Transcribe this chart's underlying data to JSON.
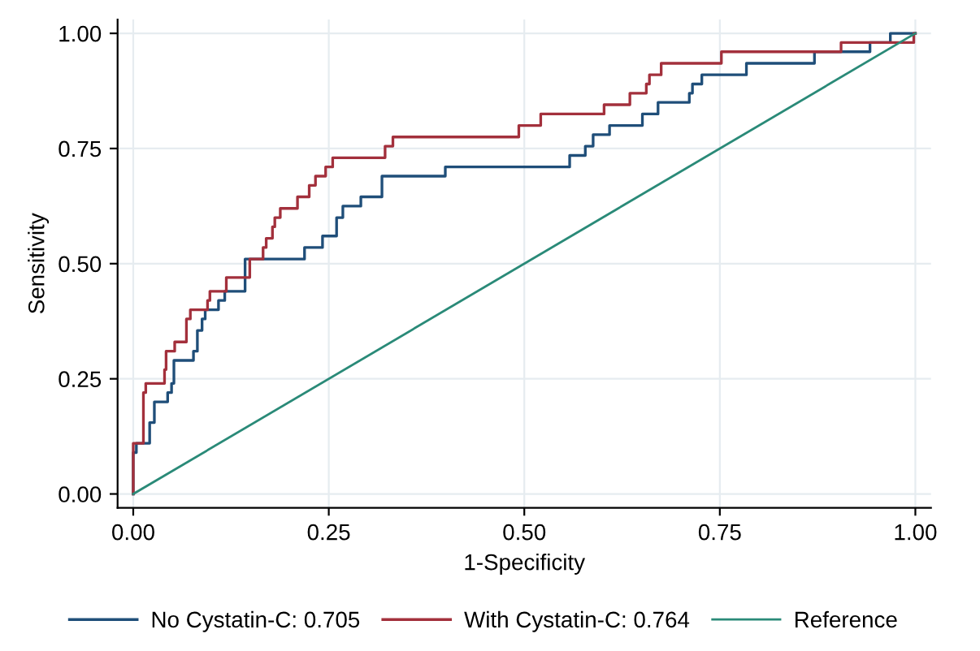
{
  "chart_data": {
    "type": "step",
    "xlabel": "1-Specificity",
    "ylabel": "Sensitivity",
    "xlim": [
      -0.02,
      1.02
    ],
    "ylim": [
      -0.03,
      1.03
    ],
    "xticks": [
      {
        "value": 0,
        "label": "0.00"
      },
      {
        "value": 0.25,
        "label": "0.25"
      },
      {
        "value": 0.5,
        "label": "0.50"
      },
      {
        "value": 0.75,
        "label": "0.75"
      },
      {
        "value": 1,
        "label": "1.00"
      }
    ],
    "yticks": [
      {
        "value": 0,
        "label": "0.00"
      },
      {
        "value": 0.25,
        "label": "0.25"
      },
      {
        "value": 0.5,
        "label": "0.50"
      },
      {
        "value": 0.75,
        "label": "0.75"
      },
      {
        "value": 1,
        "label": "1.00"
      }
    ],
    "grid": true,
    "legend": "bottom",
    "series": [
      {
        "name": "No Cystatin-C: 0.705",
        "color": "#1f4e79",
        "x": [
          0,
          0,
          0.004,
          0.021,
          0.027,
          0.044,
          0.049,
          0.052,
          0.077,
          0.082,
          0.088,
          0.092,
          0.109,
          0.117,
          0.143,
          0.219,
          0.242,
          0.26,
          0.268,
          0.291,
          0.318,
          0.399,
          0.558,
          0.578,
          0.588,
          0.609,
          0.651,
          0.671,
          0.711,
          0.715,
          0.727,
          0.784,
          0.871,
          0.942,
          0.968,
          1.0
        ],
        "values": [
          0,
          0.09,
          0.11,
          0.155,
          0.2,
          0.22,
          0.24,
          0.29,
          0.31,
          0.355,
          0.38,
          0.4,
          0.42,
          0.44,
          0.51,
          0.535,
          0.56,
          0.6,
          0.625,
          0.645,
          0.69,
          0.71,
          0.735,
          0.755,
          0.78,
          0.8,
          0.825,
          0.85,
          0.87,
          0.89,
          0.91,
          0.935,
          0.96,
          0.98,
          1.0,
          1.0
        ]
      },
      {
        "name": "With Cystatin-C: 0.764",
        "color": "#a3303c",
        "x": [
          0,
          0,
          0.013,
          0.016,
          0.04,
          0.042,
          0.053,
          0.068,
          0.073,
          0.095,
          0.098,
          0.119,
          0.149,
          0.166,
          0.17,
          0.178,
          0.181,
          0.188,
          0.21,
          0.225,
          0.233,
          0.246,
          0.255,
          0.322,
          0.332,
          0.493,
          0.521,
          0.602,
          0.635,
          0.656,
          0.66,
          0.675,
          0.752,
          0.905,
          0.998,
          1.0
        ],
        "values": [
          0,
          0.11,
          0.22,
          0.24,
          0.27,
          0.31,
          0.33,
          0.38,
          0.4,
          0.42,
          0.44,
          0.47,
          0.51,
          0.535,
          0.555,
          0.58,
          0.6,
          0.62,
          0.645,
          0.67,
          0.69,
          0.71,
          0.73,
          0.755,
          0.775,
          0.8,
          0.825,
          0.845,
          0.87,
          0.89,
          0.91,
          0.935,
          0.96,
          0.98,
          1.0,
          1.0
        ]
      },
      {
        "name": "Reference",
        "type": "line",
        "color": "#2a8a78",
        "x": [
          0,
          1
        ],
        "values": [
          0,
          1
        ]
      }
    ]
  }
}
